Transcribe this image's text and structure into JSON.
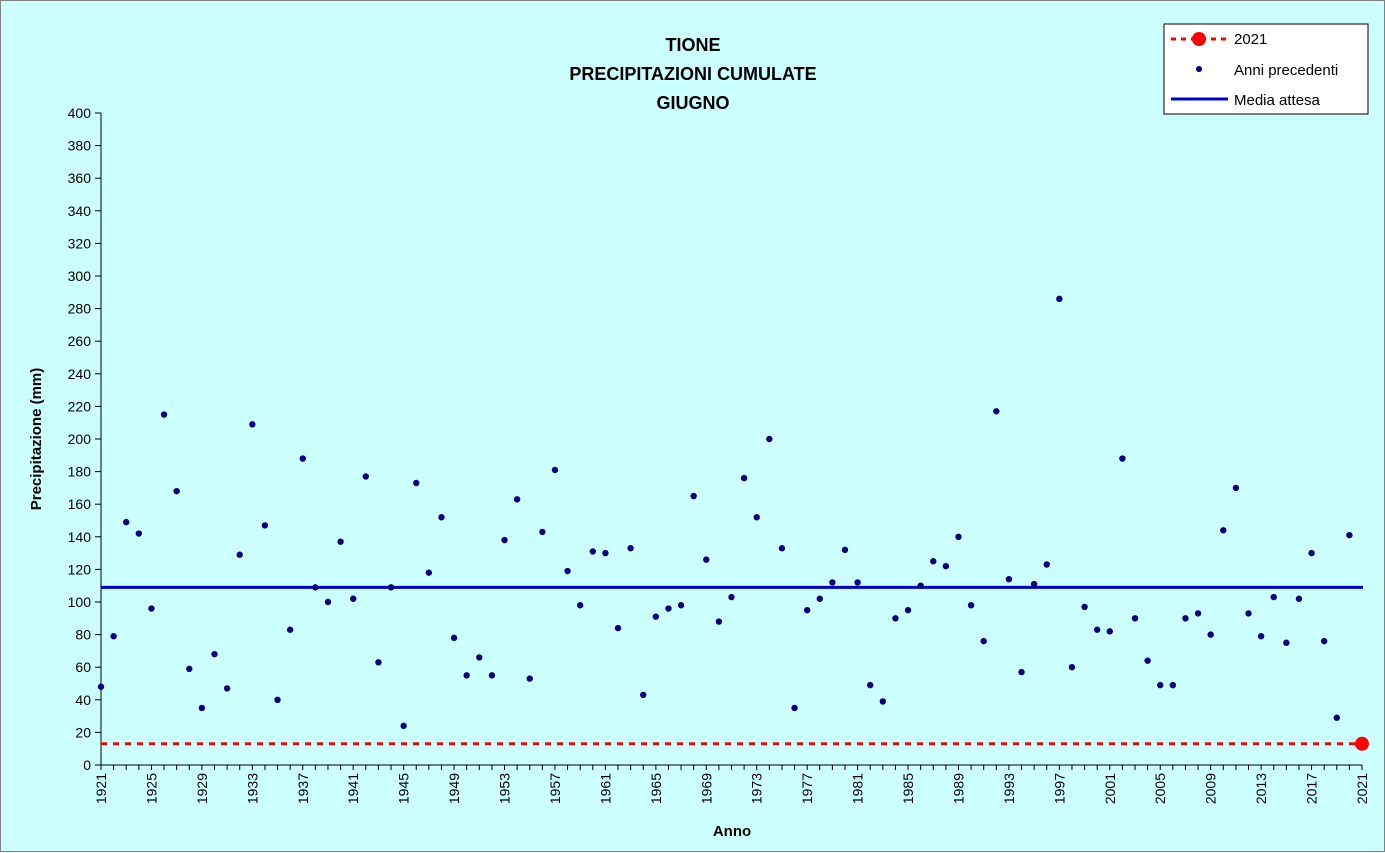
{
  "chart_data": {
    "type": "scatter",
    "title_lines": [
      "TIONE",
      "PRECIPITAZIONI CUMULATE",
      "GIUGNO"
    ],
    "xlabel": "Anno",
    "ylabel": "Precipitazione (mm)",
    "xlim": [
      1921,
      2021
    ],
    "ylim": [
      0,
      400
    ],
    "ytick_step": 20,
    "xticks": [
      1921,
      1925,
      1929,
      1933,
      1937,
      1941,
      1945,
      1949,
      1953,
      1957,
      1961,
      1965,
      1969,
      1973,
      1977,
      1981,
      1985,
      1989,
      1993,
      1997,
      2001,
      2005,
      2009,
      2013,
      2017,
      2021
    ],
    "grid": false,
    "legend_position": "top-right",
    "legend": [
      "2021",
      "Anni precedenti",
      "Media attesa"
    ],
    "colors": {
      "current": "#ff0000",
      "previous": "#000080",
      "mean": "#0000cc"
    },
    "series": [
      {
        "name": "Anni precedenti",
        "x": [
          1921,
          1922,
          1923,
          1924,
          1925,
          1926,
          1927,
          1928,
          1929,
          1930,
          1931,
          1932,
          1933,
          1934,
          1935,
          1936,
          1937,
          1938,
          1939,
          1940,
          1941,
          1942,
          1943,
          1944,
          1945,
          1946,
          1947,
          1948,
          1949,
          1950,
          1951,
          1952,
          1953,
          1954,
          1955,
          1956,
          1957,
          1958,
          1959,
          1960,
          1961,
          1962,
          1963,
          1964,
          1965,
          1966,
          1967,
          1968,
          1969,
          1970,
          1971,
          1972,
          1973,
          1974,
          1975,
          1976,
          1977,
          1978,
          1979,
          1980,
          1981,
          1982,
          1983,
          1984,
          1985,
          1986,
          1987,
          1988,
          1989,
          1990,
          1991,
          1992,
          1993,
          1994,
          1995,
          1996,
          1997,
          1998,
          1999,
          2000,
          2001,
          2002,
          2003,
          2004,
          2005,
          2006,
          2007,
          2008,
          2009,
          2010,
          2011,
          2012,
          2013,
          2014,
          2015,
          2016,
          2017,
          2018,
          2019,
          2020
        ],
        "y": [
          48,
          79,
          149,
          142,
          96,
          215,
          168,
          59,
          35,
          68,
          47,
          129,
          209,
          147,
          40,
          83,
          188,
          109,
          100,
          137,
          102,
          177,
          63,
          109,
          24,
          173,
          118,
          152,
          78,
          55,
          66,
          55,
          138,
          163,
          53,
          143,
          181,
          119,
          98,
          131,
          130,
          84,
          133,
          43,
          91,
          96,
          98,
          165,
          126,
          88,
          103,
          176,
          152,
          200,
          133,
          35,
          95,
          102,
          112,
          132,
          112,
          49,
          39,
          90,
          95,
          110,
          125,
          122,
          140,
          98,
          76,
          217,
          114,
          57,
          111,
          123,
          286,
          60,
          97,
          83,
          82,
          188,
          90,
          64,
          49,
          49,
          90,
          93,
          80,
          144,
          170,
          93,
          79,
          103,
          75,
          102,
          130,
          76,
          29,
          141
        ]
      },
      {
        "name": "2021",
        "x": [
          2021
        ],
        "y": [
          13
        ]
      },
      {
        "name": "Media attesa",
        "value": 109
      }
    ]
  }
}
